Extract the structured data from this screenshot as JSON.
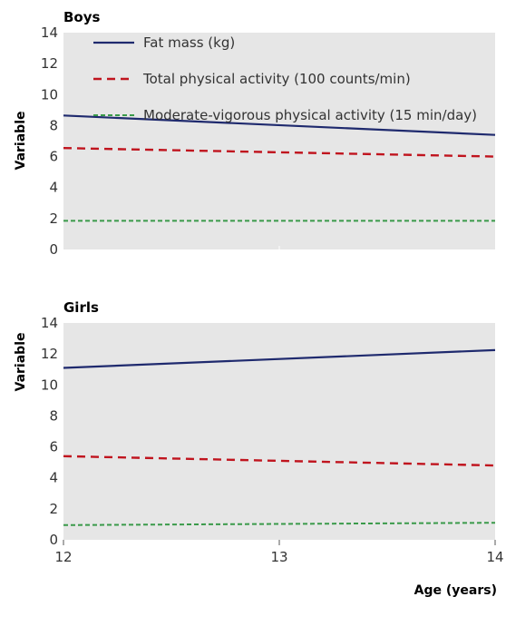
{
  "chart_data": [
    {
      "type": "line",
      "title": "Boys",
      "ylabel": "Variable",
      "xlabel": "",
      "xlim": [
        12,
        14
      ],
      "ylim": [
        0,
        14
      ],
      "yticks": [
        "0",
        "2",
        "4",
        "6",
        "8",
        "10",
        "12",
        "14"
      ],
      "xticks": [],
      "grid": false,
      "legend": "top-left",
      "series": [
        {
          "name": "Fat mass (kg)",
          "color": "#1f2a6e",
          "style": "solid",
          "x": [
            12,
            14
          ],
          "y": [
            8.65,
            7.4
          ]
        },
        {
          "name": "Total physical activity (100 counts/min)",
          "color": "#c0141e",
          "style": "dashed",
          "x": [
            12,
            14
          ],
          "y": [
            6.55,
            6.0
          ]
        },
        {
          "name": "Moderate-vigorous physical activity (15 min/day)",
          "color": "#3a9a4a",
          "style": "dotted",
          "x": [
            12,
            14
          ],
          "y": [
            1.85,
            1.85
          ]
        }
      ]
    },
    {
      "type": "line",
      "title": "Girls",
      "ylabel": "Variable",
      "xlabel": "Age (years)",
      "xlim": [
        12,
        14
      ],
      "ylim": [
        0,
        14
      ],
      "yticks": [
        "0",
        "2",
        "4",
        "6",
        "8",
        "10",
        "12",
        "14"
      ],
      "xticks": [
        "12",
        "13",
        "14"
      ],
      "grid": false,
      "legend": "",
      "series": [
        {
          "name": "Fat mass (kg)",
          "color": "#1f2a6e",
          "style": "solid",
          "x": [
            12,
            14
          ],
          "y": [
            11.1,
            12.25
          ]
        },
        {
          "name": "Total physical activity (100 counts/min)",
          "color": "#c0141e",
          "style": "dashed",
          "x": [
            12,
            14
          ],
          "y": [
            5.4,
            4.8
          ]
        },
        {
          "name": "Moderate-vigorous physical activity (15 min/day)",
          "color": "#3a9a4a",
          "style": "dotted",
          "x": [
            12,
            14
          ],
          "y": [
            0.95,
            1.1
          ]
        }
      ]
    }
  ],
  "colors": {
    "plot_background": "#e6e6e6"
  }
}
